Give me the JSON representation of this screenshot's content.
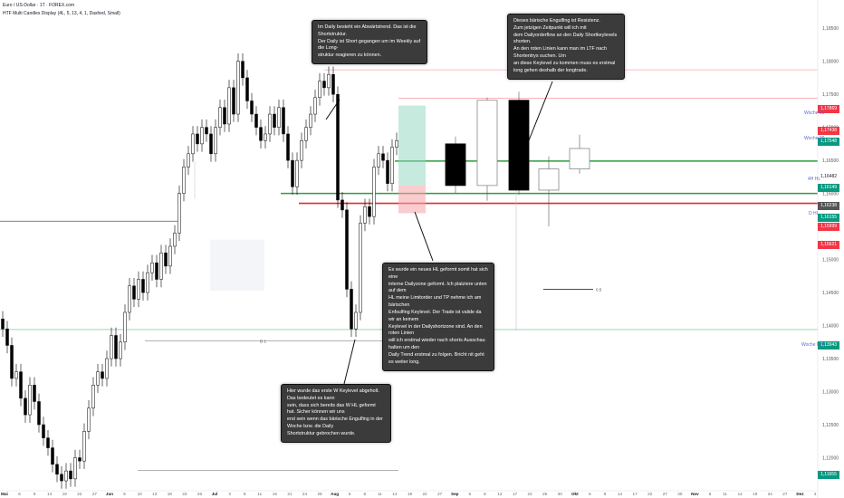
{
  "header": {
    "title": "Euro / US-Dollar · 1T · FOREX.com",
    "indicator": "HTF Multi Candles Display (4L, 5, 13, 4, 1, Dashed, Small)"
  },
  "notes": [
    {
      "text": "Im Daily besteht ein Abwärtstrend. Das ist die Shortstruktur.\nDer Daily ist  Short gegangen um im Weekly auf die Long-\nstruktur reagieren zu können."
    },
    {
      "text": "Dieses bärische Engulfing ist Resistenz.\nZum jetzigen Zeitpunkt will ich mit\ndem Dailyorderflow an den Daily Shortkeylevels shorten.\nAn den roten Linien kann man im LTF nach Shortentrys suchen. Um\nan diese Keylevel zu kommen muss es erstmal\nlong gehen deshalb der longtrade."
    },
    {
      "text": "Es wurde ein neues HL geformt somit hat sich eine\ninterne Dailyzone geformt. Ich platziere unten auf dem\nHL meine Limitorder und TP nehme ich am bärischen\nEnfsulfing Keylevel. Der Trade ist valide da wir an keinem\nKeylevel in der Dailyshortzone sind. An den roten Linien\nwill ich erstmal wieder nach shorts Ausschau halten um den\nDaily Trend erstmal zu folgen. Bricht nit geht es weiter long."
    },
    {
      "text": "Hier wurde das erste W Keylevel abgeholt. Das bedeutet es kann\nsein, dass sich bereits das W HL geformt hat. Sicher können wir uns\nerst sein wenn das bärische Engulfing in der Woche bzw. die Daily\nShortstruktur gebrochen wurde."
    }
  ],
  "price_badges": [
    {
      "label": "1,17869",
      "color": "#f23645"
    },
    {
      "label": "1,17438",
      "color": "#f23645"
    },
    {
      "label": "1,17548",
      "color": "#089981"
    },
    {
      "label": "1,16482",
      "color": "#ffffff"
    },
    {
      "label": "1,16149",
      "color": "#089981"
    },
    {
      "label": "1,16238",
      "color": "#555555"
    },
    {
      "label": "1,16155",
      "color": "#089981"
    },
    {
      "label": "1,15999",
      "color": "#f23645"
    },
    {
      "label": "1,15621",
      "color": "#f23645"
    },
    {
      "label": "1,13943",
      "color": "#089981"
    },
    {
      "label": "1,11655",
      "color": "#089981"
    }
  ],
  "right_labels": [
    "Woche 29",
    "Woche 29",
    "4H HL",
    "D HL",
    "Woche HH"
  ],
  "misc_labels": [
    "D 1",
    "0.5"
  ],
  "chart_data": {
    "type": "candlestick",
    "y_axis_ticks": [
      "1,18500",
      "1,18000",
      "1,17500",
      "1,17000",
      "1,16500",
      "1,16000",
      "1,15500",
      "1,15000",
      "1,14500",
      "1,14000",
      "1,13500",
      "1,13000",
      "1,12500",
      "1,12000"
    ],
    "x_axis_ticks": [
      "Mai",
      "6",
      "9",
      "14",
      "19",
      "22",
      "27",
      "Jun",
      "5",
      "10",
      "13",
      "18",
      "23",
      "26",
      "Jul",
      "3",
      "8",
      "11",
      "16",
      "21",
      "24",
      "29",
      "Aug",
      "5",
      "8",
      "11",
      "14",
      "19",
      "22",
      "27",
      "Sep",
      "5",
      "8",
      "12",
      "17",
      "22",
      "25",
      "30",
      "Okt",
      "6",
      "9",
      "14",
      "17",
      "22",
      "27",
      "30",
      "Nov",
      "6",
      "11",
      "14",
      "19",
      "24",
      "27",
      "Dez",
      "4"
    ],
    "ylim": [
      1.115,
      1.189
    ],
    "horizontal_levels": [
      {
        "name": "Woche 29",
        "value": 1.1787,
        "color": "#f7a8ae"
      },
      {
        "name": "Woche 29",
        "value": 1.1744,
        "color": "#f7a8ae"
      },
      {
        "name": "4H HL",
        "value": 1.1649,
        "color": "#2e9e3e"
      },
      {
        "name": "D HL",
        "value": 1.16,
        "color": "#2e9e3e"
      },
      {
        "name": "red level",
        "value": 1.1585,
        "color": "#e8282f"
      },
      {
        "name": "Woche HH",
        "value": 1.1394,
        "color": "#8fd19e"
      }
    ],
    "daily_candles_note": "approximate OHLC read from chart",
    "htf_candles": [
      {
        "o": 1.1675,
        "h": 1.1686,
        "l": 1.16,
        "c": 1.1612
      },
      {
        "o": 1.1612,
        "h": 1.1745,
        "l": 1.1589,
        "c": 1.1741
      },
      {
        "o": 1.1741,
        "h": 1.1754,
        "l": 1.1598,
        "c": 1.1605
      },
      {
        "o": 1.1605,
        "h": 1.1656,
        "l": 1.155,
        "c": 1.1637
      },
      {
        "o": 1.1637,
        "h": 1.1689,
        "l": 1.163,
        "c": 1.1668
      }
    ],
    "trade_box": {
      "entry": 1.1612,
      "tp": 1.1733,
      "sl": 1.157
    }
  }
}
